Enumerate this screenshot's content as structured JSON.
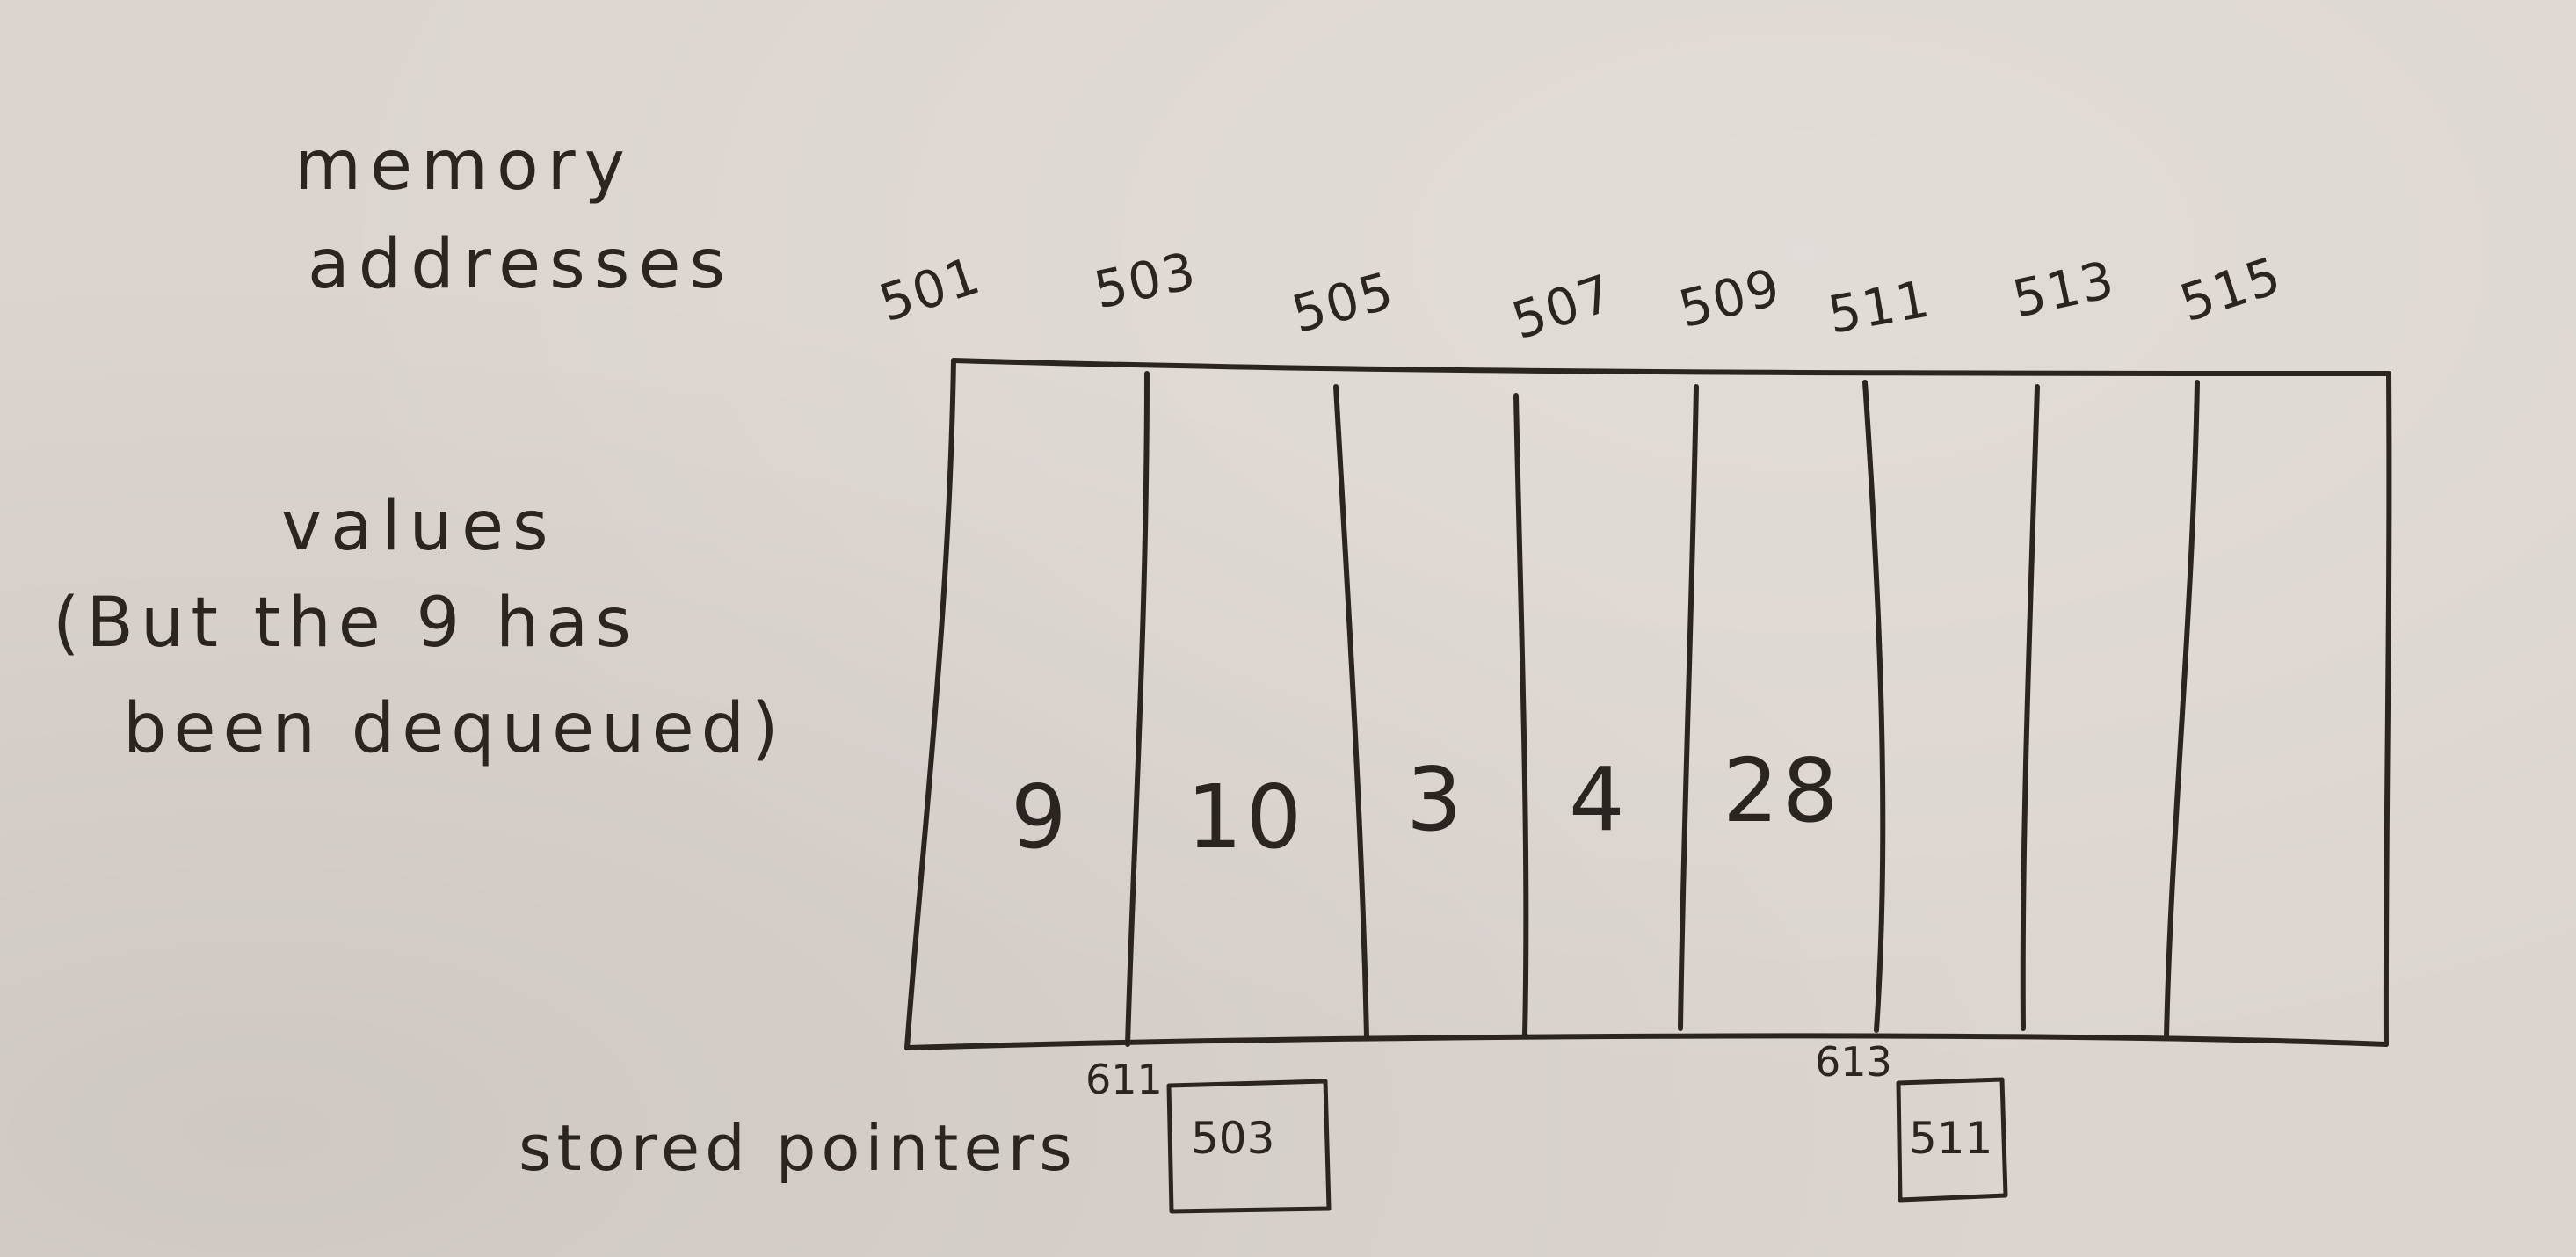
{
  "labels": {
    "memory_addresses": [
      "memory",
      "addresses"
    ],
    "values": [
      "values",
      "(But the 9 has",
      "been dequeued)"
    ],
    "stored_pointers": "stored pointers"
  },
  "addresses": [
    "501",
    "503",
    "505",
    "507",
    "509",
    "511",
    "513",
    "515"
  ],
  "cells": [
    "9",
    "10",
    "3",
    "4",
    "28",
    "",
    "",
    ""
  ],
  "pointers": [
    {
      "location": "611",
      "value": "503"
    },
    {
      "location": "613",
      "value": "511"
    }
  ]
}
